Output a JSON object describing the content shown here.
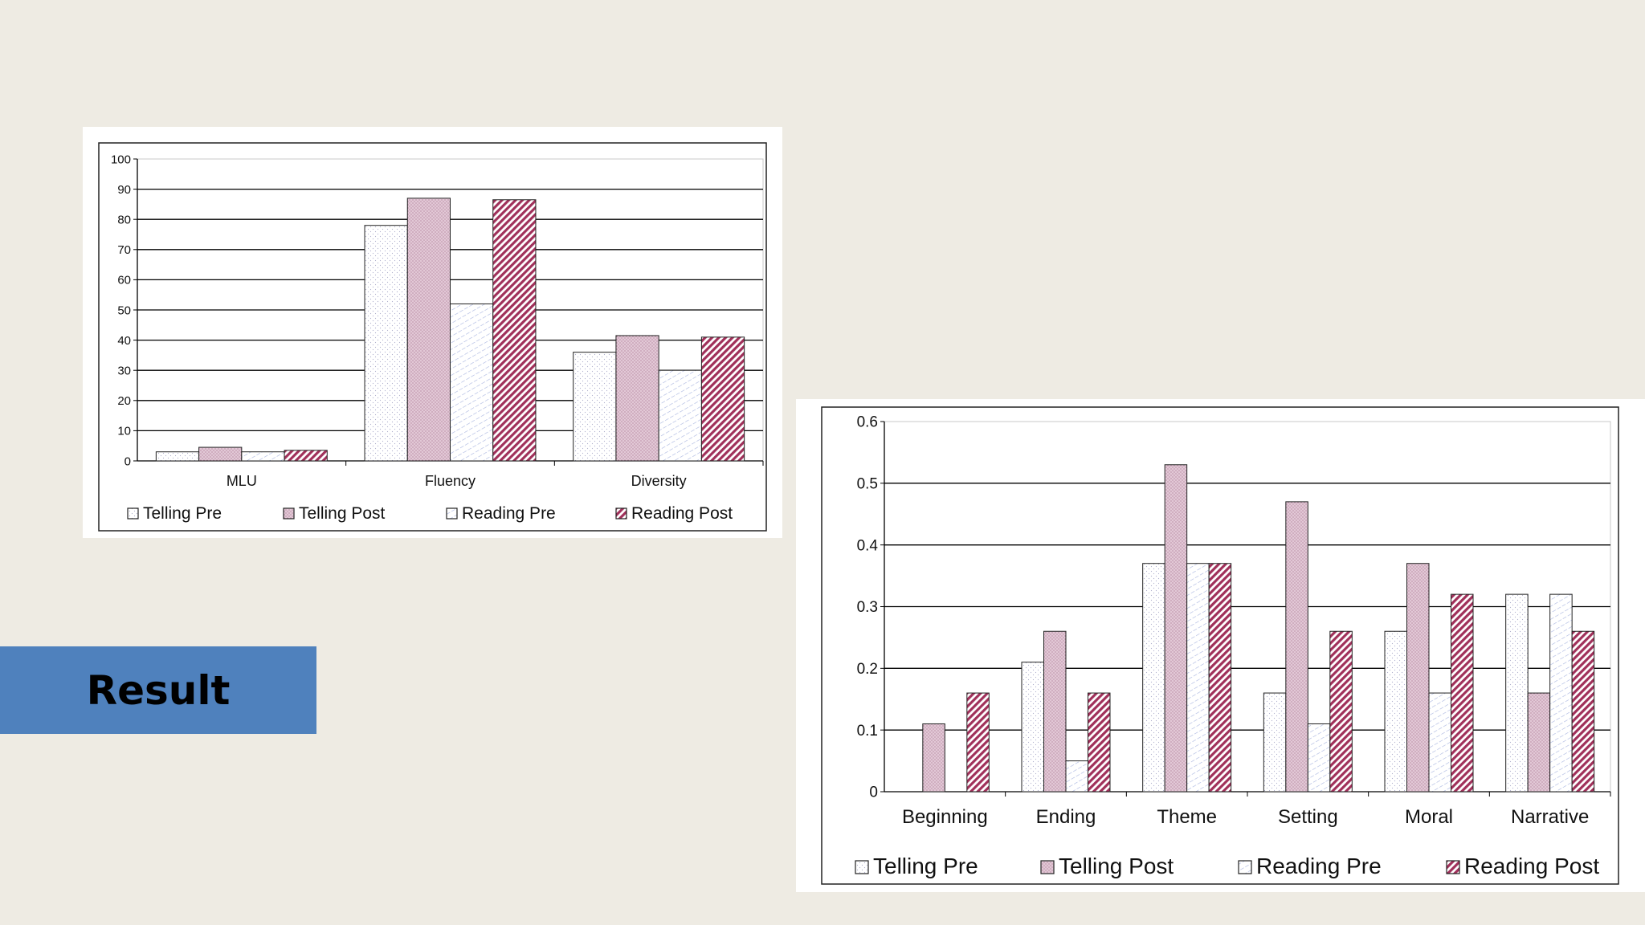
{
  "slide": {
    "result_label": "Result"
  },
  "colors": {
    "background": "#eeebe3",
    "result_box": "#4f81bd",
    "telling_pre": "#f4f4fc",
    "telling_post": "#e2c8d6",
    "reading_pre": "#ececfa",
    "reading_post": "#a0305a"
  },
  "chart_data": [
    {
      "type": "bar",
      "categories": [
        "MLU",
        "Fluency",
        "Diversity"
      ],
      "yticks": [
        "0",
        "10",
        "20",
        "30",
        "40",
        "50",
        "60",
        "70",
        "80",
        "90",
        "100"
      ],
      "ylim": [
        0,
        100
      ],
      "grid": true,
      "legend_position": "bottom",
      "series": [
        {
          "name": "Telling Pre",
          "values": [
            3,
            78,
            36
          ]
        },
        {
          "name": "Telling Post",
          "values": [
            4.5,
            87,
            41.5
          ]
        },
        {
          "name": "Reading Pre",
          "values": [
            3,
            52,
            30
          ]
        },
        {
          "name": "Reading Post",
          "values": [
            3.5,
            86.5,
            41
          ]
        }
      ]
    },
    {
      "type": "bar",
      "categories": [
        "Beginning",
        "Ending",
        "Theme",
        "Setting",
        "Moral",
        "Narrative"
      ],
      "yticks": [
        "0",
        "0.1",
        "0.2",
        "0.3",
        "0.4",
        "0.5",
        "0.6"
      ],
      "ylim": [
        0,
        0.6
      ],
      "grid": true,
      "legend_position": "bottom",
      "series": [
        {
          "name": "Telling Pre",
          "values": [
            0,
            0.21,
            0.37,
            0.16,
            0.26,
            0.32
          ]
        },
        {
          "name": "Telling Post",
          "values": [
            0.11,
            0.26,
            0.53,
            0.47,
            0.37,
            0.16
          ]
        },
        {
          "name": "Reading Pre",
          "values": [
            0,
            0.05,
            0.37,
            0.11,
            0.16,
            0.32
          ]
        },
        {
          "name": "Reading Post",
          "values": [
            0.16,
            0.16,
            0.37,
            0.26,
            0.32,
            0.26
          ]
        }
      ]
    }
  ]
}
